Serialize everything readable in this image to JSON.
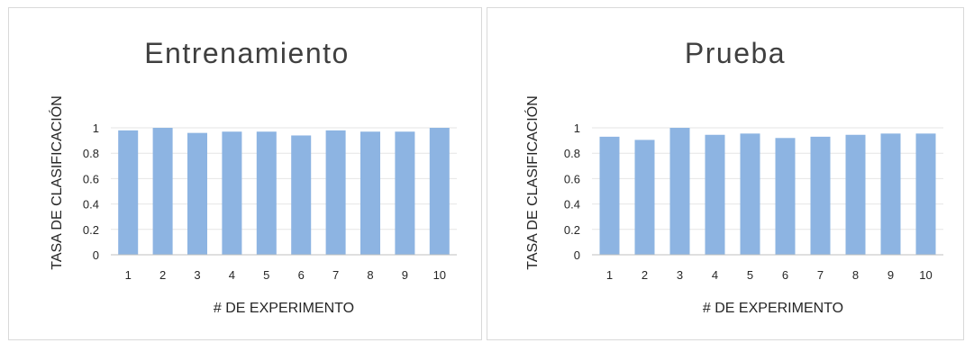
{
  "chart_data": [
    {
      "type": "bar",
      "title": "Entrenamiento",
      "xlabel": "# DE EXPERIMENTO",
      "ylabel": "TASA DE CLASIFICACIÓN",
      "categories": [
        "1",
        "2",
        "3",
        "4",
        "5",
        "6",
        "7",
        "8",
        "9",
        "10"
      ],
      "values": [
        0.98,
        1.0,
        0.96,
        0.97,
        0.97,
        0.94,
        0.98,
        0.97,
        0.97,
        1.0
      ],
      "ylim": [
        0,
        1
      ],
      "yticks": [
        "0",
        "0.2",
        "0.4",
        "0.6",
        "0.8",
        "1"
      ],
      "grid": true,
      "legend": "none"
    },
    {
      "type": "bar",
      "title": "Prueba",
      "xlabel": "# DE EXPERIMENTO",
      "ylabel": "TASA DE CLASIFICACIÓN",
      "categories": [
        "1",
        "2",
        "3",
        "4",
        "5",
        "6",
        "7",
        "8",
        "9",
        "10"
      ],
      "values": [
        0.93,
        0.905,
        1.0,
        0.945,
        0.955,
        0.92,
        0.93,
        0.945,
        0.955,
        0.955
      ],
      "ylim": [
        0,
        1
      ],
      "yticks": [
        "0",
        "0.2",
        "0.4",
        "0.6",
        "0.8",
        "1"
      ],
      "grid": true,
      "legend": "none"
    }
  ],
  "colors": {
    "bar": "#8db4e2",
    "grid": "#e6e6e6",
    "axis": "#bfbfbf"
  }
}
